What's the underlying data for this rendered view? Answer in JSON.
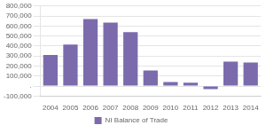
{
  "chart_data": {
    "type": "bar",
    "categories": [
      "2004",
      "2005",
      "2006",
      "2007",
      "2008",
      "2009",
      "2010",
      "2011",
      "2012",
      "2013",
      "2014"
    ],
    "series": [
      {
        "name": "NI Balance of Trade",
        "color": "#7B6BAD",
        "values": [
          310000,
          415000,
          670000,
          635000,
          540000,
          155000,
          40000,
          35000,
          -30000,
          245000,
          235000
        ]
      }
    ],
    "ylim": [
      -100000,
      800000
    ],
    "yticks": [
      {
        "value": -100000,
        "label": "-100,000"
      },
      {
        "value": 0,
        "label": "."
      },
      {
        "value": 100000,
        "label": "100,000"
      },
      {
        "value": 200000,
        "label": "200,000"
      },
      {
        "value": 300000,
        "label": "300,000"
      },
      {
        "value": 400000,
        "label": "400,000"
      },
      {
        "value": 500000,
        "label": "500,000"
      },
      {
        "value": 600000,
        "label": "600,000"
      },
      {
        "value": 700000,
        "label": "700,000"
      },
      {
        "value": 800000,
        "label": "800,000"
      }
    ],
    "grid": true,
    "legend": "bottom"
  }
}
